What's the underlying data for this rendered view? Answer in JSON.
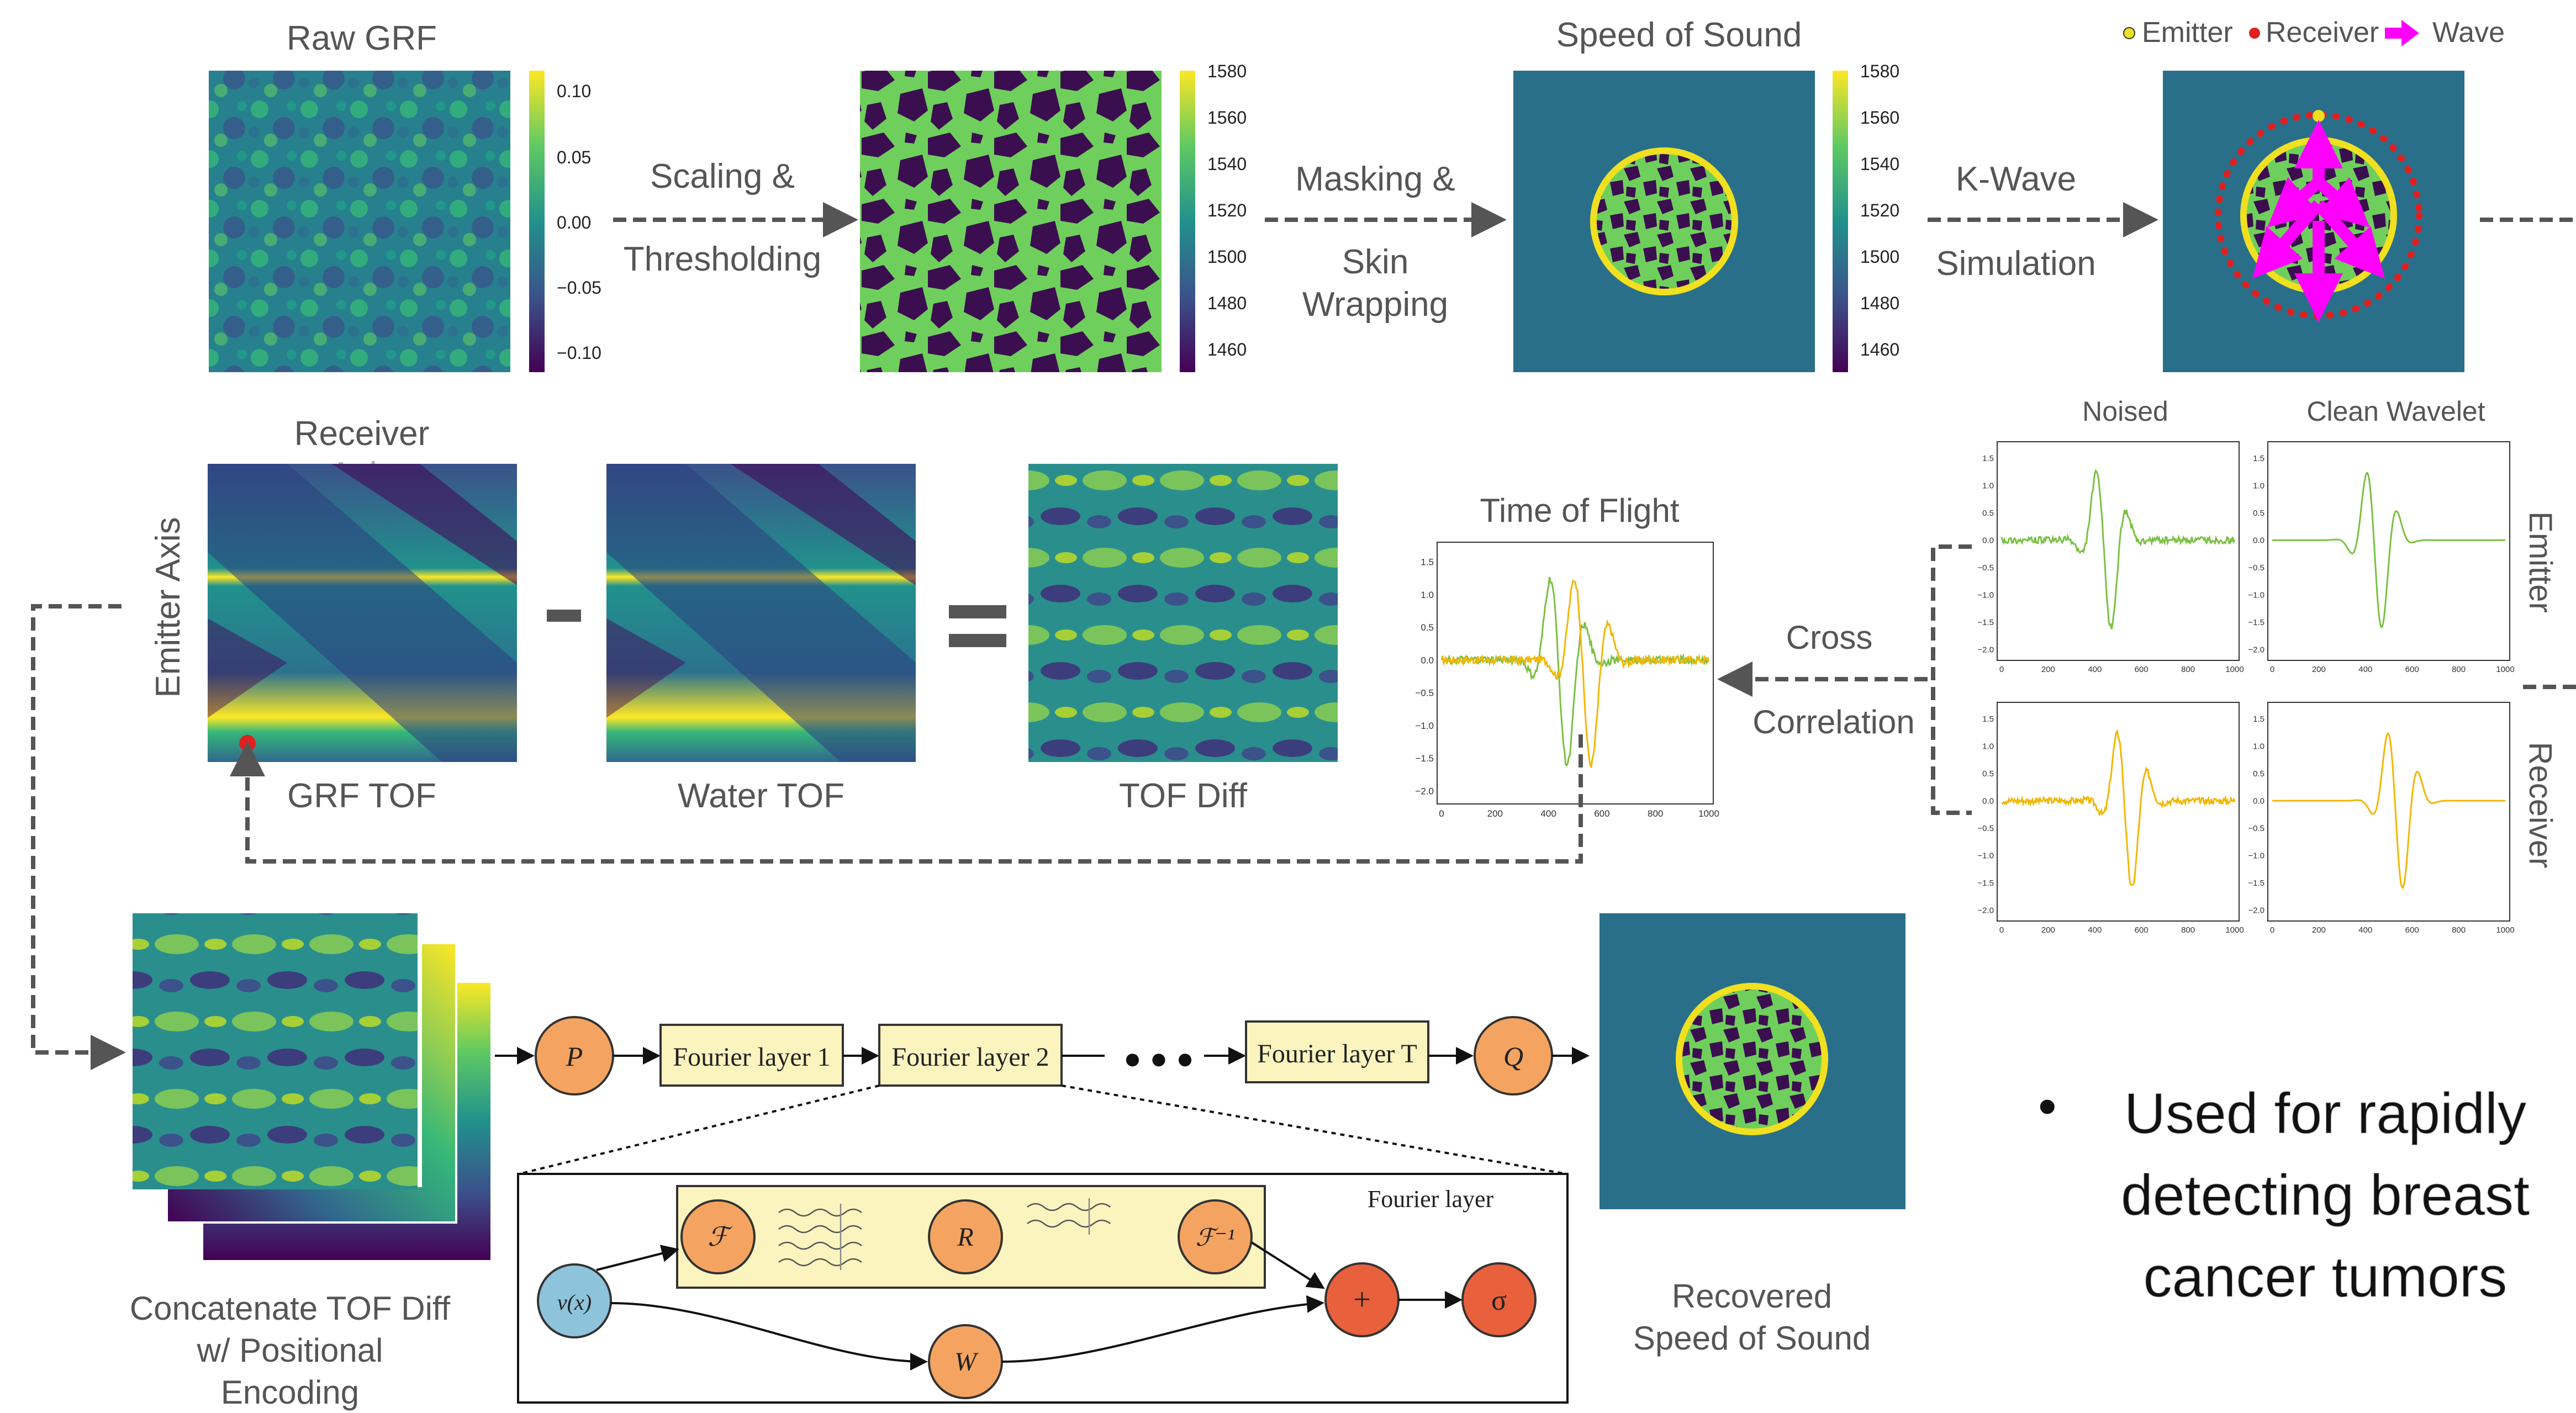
{
  "colors": {
    "viridis_dark": "#440154",
    "viridis_mid": "#21918c",
    "viridis_green": "#5ec962",
    "viridis_yellow": "#fde725",
    "tissue_green": "#6fcf5c",
    "tissue_dark": "#3b0f4f",
    "water_teal": "#2a6f8a",
    "skin_yellow": "#f0e020",
    "arrow_gray": "#555555",
    "label_gray": "#555555",
    "magenta": "#ff00ff",
    "red": "#e02020",
    "orange": "#f4a460",
    "blue_node": "#8ec3dc",
    "red_node": "#e8603c",
    "fourier_box": "#fbf4bf",
    "trace_green": "#7ac142",
    "trace_yellow": "#f2b705"
  },
  "top_row": {
    "raw_grf_title": "Raw GRF",
    "raw_grf_ticks": [
      "0.10",
      "0.05",
      "0.00",
      "−0.05",
      "−0.10"
    ],
    "scaling_label_1": "Scaling &",
    "scaling_label_2": "Thresholding",
    "binary_ticks": [
      "1580",
      "1560",
      "1540",
      "1520",
      "1500",
      "1480",
      "1460"
    ],
    "masking_label_1": "Masking &",
    "masking_label_2": "Skin",
    "masking_label_3": "Wrapping",
    "sos_title": "Speed of Sound",
    "sos_ticks": [
      "1580",
      "1560",
      "1540",
      "1520",
      "1500",
      "1480",
      "1460"
    ],
    "kwave_label_1": "K-Wave",
    "kwave_label_2": "Simulation",
    "legend_emitter": "Emitter",
    "legend_receiver": "Receiver",
    "legend_wave": "Wave"
  },
  "waveforms": {
    "noised_title": "Noised",
    "clean_title": "Clean Wavelet",
    "emitter_label": "Emitter",
    "receiver_label": "Receiver",
    "y_ticks": [
      "1.5",
      "1.0",
      "0.5",
      "0.0",
      "−0.5",
      "−1.0",
      "−1.5",
      "−2.0"
    ],
    "x_ticks": [
      "0",
      "200",
      "400",
      "600",
      "800",
      "1000"
    ]
  },
  "middle_row": {
    "receiver_axis_1": "Receiver",
    "receiver_axis_2": "Axis",
    "emitter_axis": "Emitter Axis",
    "minus_sign": "-",
    "equals_sign": "=",
    "grf_tof_label": "GRF TOF",
    "water_tof_label": "Water TOF",
    "tof_diff_label": "TOF Diff",
    "tof_title": "Time of Flight",
    "tof_y_ticks": [
      "1.5",
      "1.0",
      "0.5",
      "0.0",
      "−0.5",
      "−1.0",
      "−1.5",
      "−2.0"
    ],
    "tof_x_ticks": [
      "0",
      "200",
      "400",
      "600",
      "800",
      "1000"
    ],
    "cross_label_1": "Cross",
    "cross_label_2": "Correlation"
  },
  "bottom_row": {
    "concat_label_1": "Concatenate TOF Diff",
    "concat_label_2": "w/ Positional",
    "concat_label_3": "Encoding",
    "p_node": "P",
    "fourier_1": "Fourier layer 1",
    "fourier_2": "Fourier layer 2",
    "ellipsis": "● ● ●",
    "fourier_t": "Fourier layer T",
    "q_node": "Q",
    "recovered_1": "Recovered",
    "recovered_2": "Speed of Sound",
    "fourier_layer_title": "Fourier layer",
    "f_node": "ℱ",
    "r_node": "R",
    "finv_node": "ℱ⁻¹",
    "v_node": "v(x)",
    "w_node": "W",
    "plus_node": "+",
    "sigma_node": "σ"
  },
  "bullet": {
    "marker": "•",
    "line_1": "Used for rapidly",
    "line_2": "detecting breast",
    "line_3": "cancer tumors"
  }
}
